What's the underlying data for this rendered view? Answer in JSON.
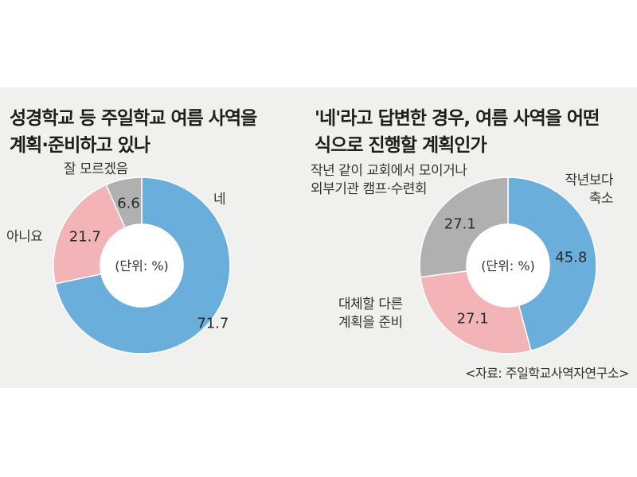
{
  "chart_data": [
    {
      "type": "pie",
      "donut": true,
      "title_lines": [
        "성경학교 등 주일학교 여름 사역을",
        "계획·준비하고 있나"
      ],
      "center_label": "(단위: %)",
      "slices": [
        {
          "label": "네",
          "value": 71.7,
          "value_text": "71.7",
          "color": "#6aaedc"
        },
        {
          "label": "아니요",
          "value": 21.7,
          "value_text": "21.7",
          "color": "#f2b4b6"
        },
        {
          "label": "잘 모르겠음",
          "value": 6.6,
          "value_text": "6.6",
          "color": "#b0b0b0"
        }
      ]
    },
    {
      "type": "pie",
      "donut": true,
      "title_lines": [
        "'네'라고 답변한 경우, 여름 사역을 어떤",
        "식으로 진행할 계획인가"
      ],
      "center_label": "(단위: %)",
      "slices": [
        {
          "label_lines": [
            "작년보다",
            "축소"
          ],
          "value": 45.8,
          "value_text": "45.8",
          "color": "#6aaedc"
        },
        {
          "label_lines": [
            "대체할 다른",
            "계획을 준비"
          ],
          "value": 27.1,
          "value_text": "27.1",
          "color": "#f2b4b6"
        },
        {
          "label_lines": [
            "작년 같이 교회에서 모이거나",
            "외부기관 캠프·수련회"
          ],
          "value": 27.1,
          "value_text": "27.1",
          "color": "#b0b0b0"
        }
      ]
    }
  ],
  "source": "<자료: 주일학교사역자연구소>"
}
